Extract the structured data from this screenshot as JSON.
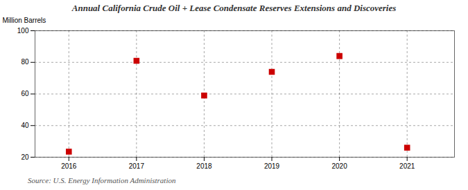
{
  "chart_data": {
    "type": "scatter",
    "title": "Annual California Crude Oil + Lease Condensate Reserves Extensions and Discoveries",
    "ylabel": "Million Barrels",
    "source": "Source: U.S. Energy Information Administration",
    "x": [
      2016,
      2017,
      2018,
      2019,
      2020,
      2021
    ],
    "values": [
      23.5,
      81.0,
      59.0,
      74.0,
      84.0,
      26.0
    ],
    "xlim": [
      2015.5,
      2021.7
    ],
    "xticks": [
      2016,
      2017,
      2018,
      2019,
      2020,
      2021
    ],
    "ylim": [
      20,
      100
    ],
    "yticks": [
      20,
      40,
      60,
      80,
      100
    ],
    "color": "#cc0000",
    "marker": "square",
    "grid": true
  }
}
